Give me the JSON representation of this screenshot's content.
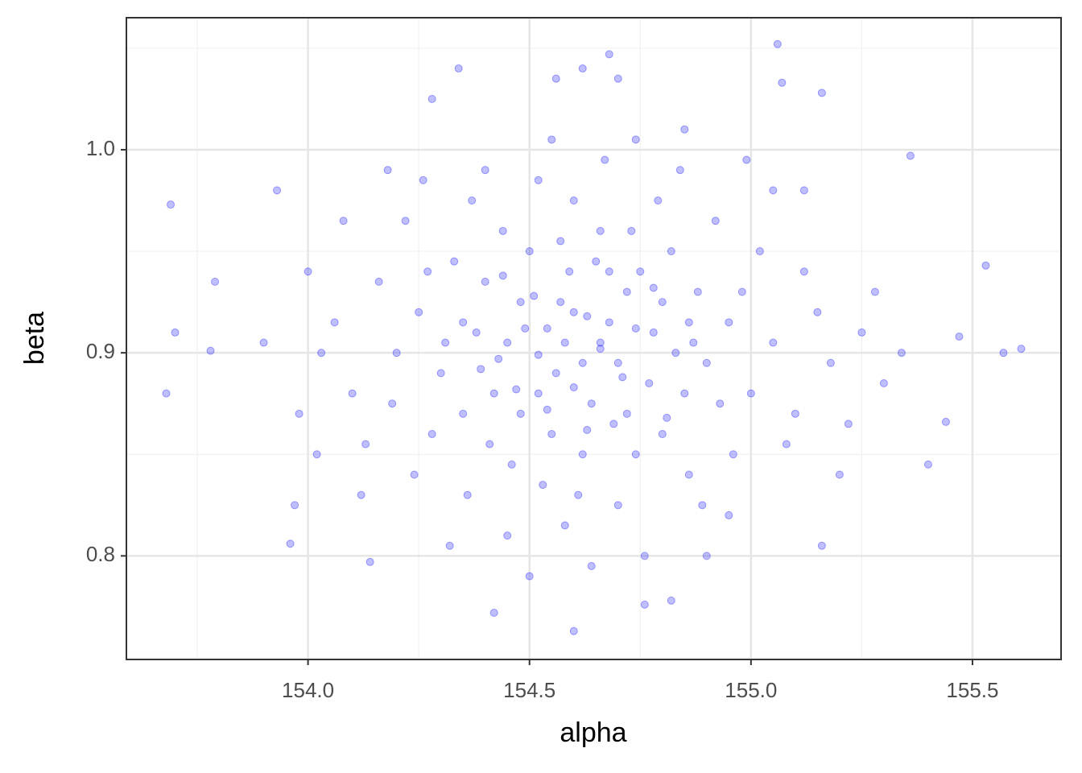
{
  "chart_data": {
    "type": "scatter",
    "x_label": "alpha",
    "y_label": "beta",
    "color": "#0000ff",
    "xlim": [
      153.59,
      155.7
    ],
    "ylim": [
      0.749,
      1.065
    ],
    "xticks": [
      {
        "value": 154,
        "label": "154.0"
      },
      154.5,
      {
        "value": 155,
        "label": "155.0"
      },
      155.5
    ],
    "yticks": [
      0.8,
      0.9,
      {
        "value": 1,
        "label": "1.0"
      }
    ],
    "grid": true,
    "x": [
      153.69,
      153.7,
      153.68,
      155.53,
      155.57,
      155.61,
      155.06,
      154.68,
      154.6,
      154.34,
      154.62,
      155.07,
      154.42,
      153.79,
      153.78,
      155.47,
      155.4,
      155.36,
      153.96,
      154.82,
      154.76,
      154.14,
      155.16,
      154.56,
      154.7,
      155.16,
      154.28,
      153.93,
      153.97,
      155.44,
      154.45,
      154.52,
      154.6,
      154.7,
      154.78,
      154.55,
      154.4,
      154.65,
      154.85,
      154.3,
      154.95,
      154.5,
      154.72,
      154.62,
      154.35,
      154.88,
      154.58,
      154.48,
      154.68,
      154.8,
      154.42,
      154.75,
      154.56,
      154.64,
      154.38,
      154.9,
      154.25,
      155.0,
      154.46,
      154.66,
      154.82,
      154.33,
      154.53,
      154.74,
      154.98,
      154.2,
      154.6,
      154.44,
      154.86,
      155.05,
      154.28,
      154.7,
      154.52,
      154.16,
      154.92,
      155.1,
      154.36,
      154.84,
      154.1,
      154.58,
      155.12,
      154.22,
      154.96,
      154.4,
      154.76,
      154.06,
      155.18,
      154.62,
      154.48,
      154.72,
      154.54,
      154.66,
      154.8,
      154.43,
      154.59,
      154.69,
      154.35,
      154.87,
      154.51,
      154.77,
      154.63,
      154.47,
      154.93,
      154.31,
      154.57,
      154.83,
      154.41,
      154.73,
      154.61,
      155.02,
      154.27,
      155.08,
      154.19,
      154.89,
      154.37,
      155.15,
      154.13,
      154.67,
      154.99,
      154.24,
      155.22,
      154.03,
      154.45,
      154.79,
      155.25,
      154.0,
      154.55,
      154.85,
      154.32,
      155.28,
      153.98,
      154.64,
      154.9,
      155.2,
      154.08,
      155.3,
      154.12,
      154.74,
      154.18,
      155.05,
      154.5,
      155.34,
      153.9,
      154.95,
      154.26,
      155.12,
      154.02,
      154.66,
      154.54,
      154.71,
      154.49,
      154.6,
      154.78,
      154.44,
      154.86,
      154.39,
      154.81,
      154.57,
      154.68,
      154.52,
      154.74,
      154.63
    ],
    "values": [
      0.973,
      0.91,
      0.88,
      0.943,
      0.9,
      0.902,
      1.052,
      1.047,
      0.763,
      1.04,
      1.04,
      1.033,
      0.772,
      0.935,
      0.901,
      0.908,
      0.845,
      0.997,
      0.806,
      0.778,
      0.776,
      0.797,
      0.805,
      1.035,
      1.035,
      1.028,
      1.025,
      0.98,
      0.825,
      0.866,
      0.905,
      0.88,
      0.92,
      0.895,
      0.91,
      0.86,
      0.935,
      0.945,
      0.88,
      0.89,
      0.915,
      0.95,
      0.87,
      0.895,
      0.87,
      0.93,
      0.905,
      0.925,
      0.915,
      0.86,
      0.88,
      0.94,
      0.89,
      0.875,
      0.91,
      0.895,
      0.92,
      0.88,
      0.845,
      0.96,
      0.95,
      0.945,
      0.835,
      0.85,
      0.93,
      0.9,
      0.975,
      0.96,
      0.84,
      0.905,
      0.86,
      0.825,
      0.985,
      0.935,
      0.965,
      0.87,
      0.83,
      0.99,
      0.88,
      0.815,
      0.94,
      0.965,
      0.85,
      0.99,
      0.8,
      0.915,
      0.895,
      0.85,
      0.87,
      0.93,
      0.912,
      0.902,
      0.925,
      0.897,
      0.94,
      0.865,
      0.915,
      0.905,
      0.928,
      0.885,
      0.918,
      0.882,
      0.875,
      0.905,
      0.955,
      0.9,
      0.855,
      0.96,
      0.83,
      0.95,
      0.94,
      0.855,
      0.875,
      0.825,
      0.975,
      0.92,
      0.855,
      0.995,
      0.995,
      0.84,
      0.865,
      0.9,
      0.81,
      0.975,
      0.91,
      0.94,
      1.005,
      1.01,
      0.805,
      0.93,
      0.87,
      0.795,
      0.8,
      0.84,
      0.965,
      0.885,
      0.83,
      1.005,
      0.99,
      0.98,
      0.79,
      0.9,
      0.905,
      0.82,
      0.985,
      0.98,
      0.85,
      0.905,
      0.872,
      0.888,
      0.912,
      0.883,
      0.932,
      0.938,
      0.915,
      0.892,
      0.868,
      0.925,
      0.94,
      0.899,
      0.912,
      0.862
    ]
  }
}
